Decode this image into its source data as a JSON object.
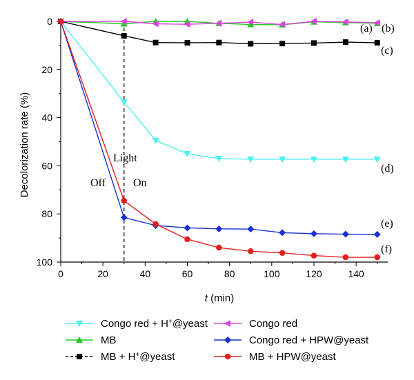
{
  "chart_data": {
    "type": "line",
    "title": "",
    "xlabel_italic": "t",
    "xlabel_rest": " (min)",
    "ylabel": "Decolorization rate (%)",
    "xlim": [
      0,
      155
    ],
    "ylim": [
      0,
      100
    ],
    "y_inverted": true,
    "x_ticks": [
      0,
      20,
      40,
      60,
      80,
      100,
      120,
      140
    ],
    "y_ticks": [
      0,
      20,
      40,
      60,
      80,
      100
    ],
    "x": [
      0,
      30,
      45,
      60,
      75,
      90,
      105,
      120,
      135,
      150
    ],
    "series": [
      {
        "name_main": "Congo red + H",
        "name_sup": "+",
        "name_tail": "@yeast",
        "key": "congo-red-h-yeast",
        "color": "#4ef0f0",
        "marker": "triangle-down",
        "dashed": false,
        "end_label": "(d)",
        "values": [
          0,
          33.5,
          49.5,
          55,
          57,
          57.3,
          57.3,
          57.3,
          57.3,
          57.3
        ]
      },
      {
        "name_main": "MB",
        "name_sup": "",
        "name_tail": "",
        "key": "mb",
        "color": "#22cc22",
        "marker": "triangle-up",
        "dashed": false,
        "end_label": "(b)",
        "values": [
          0,
          1,
          0,
          0,
          0.8,
          1.3,
          1.4,
          0.2,
          0.5,
          0.8
        ]
      },
      {
        "name_main": "MB + H",
        "name_sup": "+",
        "name_tail": "@yeast",
        "key": "mb-h-yeast",
        "color": "#000000",
        "marker": "square",
        "dashed": true,
        "end_label": "(c)",
        "values": [
          0,
          6,
          8.8,
          8.9,
          8.8,
          9.3,
          9.2,
          9,
          8.6,
          8.9
        ]
      },
      {
        "name_main": "Congo red",
        "name_sup": "",
        "name_tail": "",
        "key": "congo-red",
        "color": "#e040e0",
        "marker": "triangle-left",
        "dashed": false,
        "end_label": "(a)",
        "values": [
          0,
          0,
          1,
          1.2,
          0.8,
          0.3,
          1.3,
          0,
          0.2,
          0.6
        ]
      },
      {
        "name_main": "Congo red + HPW@yeast",
        "name_sup": "",
        "name_tail": "",
        "key": "congo-red-hpw-yeast",
        "color": "#1a2fd0",
        "marker": "diamond",
        "dashed": false,
        "end_label": "(e)",
        "values": [
          0,
          81.5,
          84.8,
          85.8,
          86.2,
          86.3,
          87.8,
          88.2,
          88.4,
          88.5
        ]
      },
      {
        "name_main": "MB + HPW@yeast",
        "name_sup": "",
        "name_tail": "",
        "key": "mb-hpw-yeast",
        "color": "#e02020",
        "marker": "circle",
        "dashed": false,
        "end_label": "(f)",
        "values": [
          0,
          74.5,
          84.2,
          90.5,
          94,
          95.5,
          96.2,
          97.3,
          98,
          98
        ]
      }
    ],
    "annotations": {
      "light": "Light",
      "off": "Off",
      "on": "On",
      "light_switch_x": 30
    },
    "grid": false,
    "legend_position": "bottom"
  }
}
